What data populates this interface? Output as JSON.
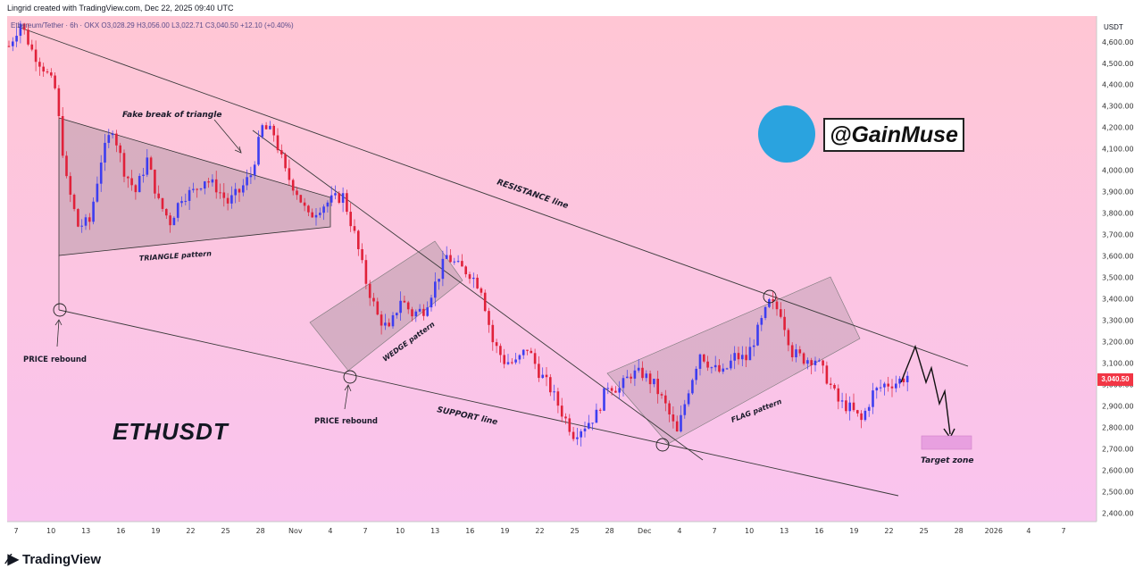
{
  "header": {
    "created_by": "Lingrid created with TradingView.com, Dec 22, 2025 09:40 UTC"
  },
  "legend": {
    "ohlc": "Ethereum/Tether · 6h · OKX O3,028.29 H3,056.00 L3,022.71 C3,040.50 +12.10 (+0.40%)"
  },
  "ticker_label": "ETHUSDT",
  "telegram": {
    "handle": "@GainMuse",
    "icon": "telegram-plane-icon"
  },
  "footer": {
    "brand": "TradingView",
    "icon": "tradingview-logo-icon"
  },
  "colors": {
    "up": "#3d3df0",
    "down": "#e0213a",
    "pattern_fill": "#c9a5b8",
    "target_fill": "#e8a0e0",
    "price_tag": "#f23645"
  },
  "chart_data": {
    "type": "candlestick",
    "currency": "USDT",
    "last_price": "3,040.50",
    "ylim": [
      2360,
      4720
    ],
    "yticks": [
      "4,600.00",
      "4,500.00",
      "4,400.00",
      "4,300.00",
      "4,200.00",
      "4,100.00",
      "4,000.00",
      "3,900.00",
      "3,800.00",
      "3,700.00",
      "3,600.00",
      "3,500.00",
      "3,400.00",
      "3,300.00",
      "3,200.00",
      "3,100.00",
      "3,000.00",
      "2,900.00",
      "2,800.00",
      "2,700.00",
      "2,600.00",
      "2,500.00",
      "2,400.00"
    ],
    "xticks": [
      "7",
      "10",
      "13",
      "16",
      "19",
      "22",
      "25",
      "28",
      "Nov",
      "4",
      "7",
      "10",
      "13",
      "16",
      "19",
      "22",
      "25",
      "28",
      "Dec",
      "4",
      "7",
      "10",
      "13",
      "16",
      "19",
      "22",
      "25",
      "28",
      "2026",
      "4",
      "7"
    ],
    "close_path": [
      [
        0,
        4580
      ],
      [
        3,
        4690
      ],
      [
        6,
        4560
      ],
      [
        9,
        4480
      ],
      [
        12,
        4380
      ],
      [
        15,
        3950
      ],
      [
        18,
        3740
      ],
      [
        21,
        3760
      ],
      [
        24,
        4050
      ],
      [
        27,
        4200
      ],
      [
        30,
        4000
      ],
      [
        33,
        3900
      ],
      [
        36,
        4050
      ],
      [
        39,
        3850
      ],
      [
        42,
        3760
      ],
      [
        45,
        3880
      ],
      [
        48,
        3900
      ],
      [
        51,
        3960
      ],
      [
        54,
        3920
      ],
      [
        57,
        3850
      ],
      [
        60,
        3900
      ],
      [
        63,
        3980
      ],
      [
        66,
        4200
      ],
      [
        69,
        4170
      ],
      [
        72,
        3990
      ],
      [
        75,
        3900
      ],
      [
        78,
        3780
      ],
      [
        81,
        3830
      ],
      [
        84,
        3860
      ],
      [
        87,
        3880
      ],
      [
        90,
        3700
      ],
      [
        93,
        3480
      ],
      [
        96,
        3320
      ],
      [
        99,
        3250
      ],
      [
        102,
        3400
      ],
      [
        105,
        3330
      ],
      [
        108,
        3350
      ],
      [
        111,
        3470
      ],
      [
        114,
        3600
      ],
      [
        117,
        3550
      ],
      [
        120,
        3520
      ],
      [
        123,
        3450
      ],
      [
        126,
        3200
      ],
      [
        129,
        3110
      ],
      [
        132,
        3100
      ],
      [
        135,
        3170
      ],
      [
        138,
        3060
      ],
      [
        141,
        2980
      ],
      [
        144,
        2870
      ],
      [
        147,
        2770
      ],
      [
        150,
        2810
      ],
      [
        153,
        2860
      ],
      [
        156,
        3000
      ],
      [
        159,
        2980
      ],
      [
        162,
        3050
      ],
      [
        165,
        3050
      ],
      [
        168,
        3000
      ],
      [
        171,
        2900
      ],
      [
        174,
        2770
      ],
      [
        177,
        2980
      ],
      [
        180,
        3150
      ],
      [
        183,
        3080
      ],
      [
        186,
        3050
      ],
      [
        189,
        3130
      ],
      [
        192,
        3120
      ],
      [
        195,
        3250
      ],
      [
        198,
        3380
      ],
      [
        201,
        3340
      ],
      [
        204,
        3150
      ],
      [
        207,
        3120
      ],
      [
        210,
        3120
      ],
      [
        213,
        3030
      ],
      [
        216,
        2920
      ],
      [
        219,
        2890
      ],
      [
        222,
        2830
      ],
      [
        225,
        2960
      ],
      [
        228,
        3000
      ],
      [
        231,
        3010
      ],
      [
        234,
        3040.5
      ]
    ],
    "annotations": [
      "Fake break of triangle",
      "RESISTANCE line",
      "TRIANGLE pattern",
      "WEDGE pattern",
      "PRICE rebound",
      "PRICE rebound",
      "SUPPORT line",
      "FLAG pattern",
      "Target zone"
    ]
  }
}
